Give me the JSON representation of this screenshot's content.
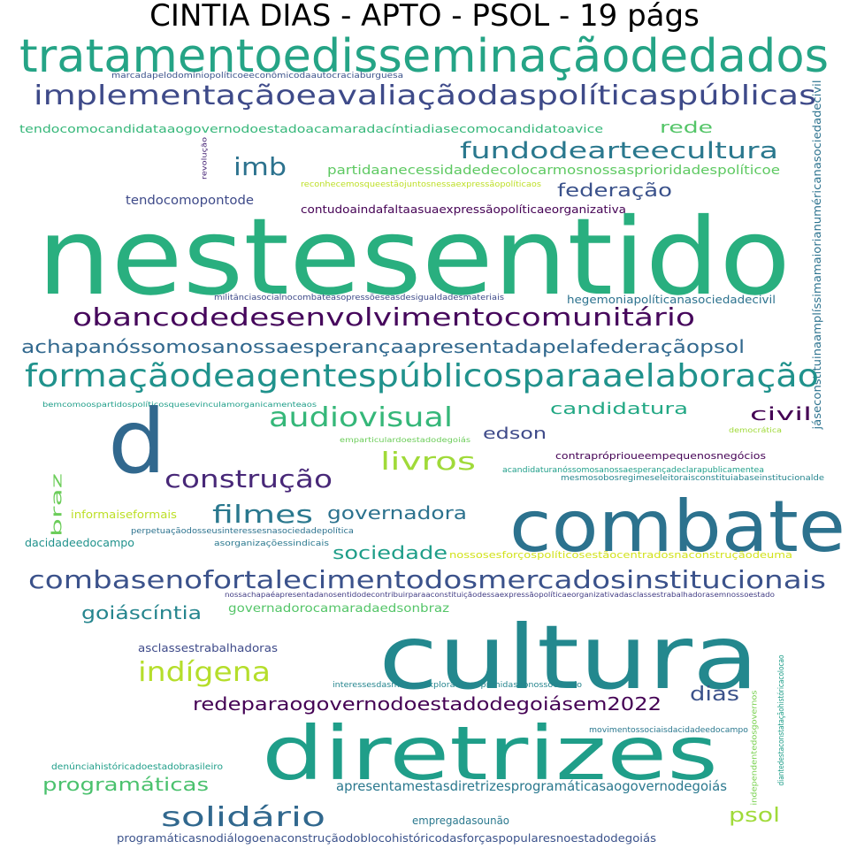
{
  "title": "CINTIA DIAS - APTO - PSOL - 19 págs",
  "words": [
    {
      "text": "tratamentoedisseminaçãodedados",
      "color": "#25a486"
    },
    {
      "text": "marcadapelodomíniopolíticoeeconômicodaautocraciaburguesa",
      "color": "#3b528b"
    },
    {
      "text": "implementaçãoeavaliaçãodaspolíticaspúblicas",
      "color": "#3e4a89"
    },
    {
      "text": "jáseconstituinaamplíssimamaiorianuméricanasociedadecivil",
      "color": "#2c728e"
    },
    {
      "text": "rede",
      "color": "#54c568"
    },
    {
      "text": "tendocomocandidataaogovernodoestadoacamaradacíntiadiasecomocandidatoavice",
      "color": "#35b779"
    },
    {
      "text": "revolução",
      "color": "#482677"
    },
    {
      "text": "fundodearteecultura",
      "color": "#2a788e"
    },
    {
      "text": "imb",
      "color": "#2c728e"
    },
    {
      "text": "partidaanecessidadedecolocarmosnossasprioridadespolíticoe",
      "color": "#5ec962"
    },
    {
      "text": "reconhecemosqueestãojuntosnessaexpressãopolíticaos",
      "color": "#bddf26"
    },
    {
      "text": "federação",
      "color": "#3b528b"
    },
    {
      "text": "tendocomopontode",
      "color": "#3e4a89"
    },
    {
      "text": "contudoaindafaltaasuaexpressãopolíticaeorganizativa",
      "color": "#440154"
    },
    {
      "text": "nestesentido",
      "color": "#29af7f"
    },
    {
      "text": "militânciasocialnocombateasopressõeseasdesigualdadesmateriais",
      "color": "#3e4a89"
    },
    {
      "text": "hegemoniapolíticanasociedadecivil",
      "color": "#2c728e"
    },
    {
      "text": "obancodedesenvolvimentocomunitário",
      "color": "#46085c"
    },
    {
      "text": "achapanóssomosanossaesperançaapresentadapelafederaçãopsol",
      "color": "#31688e"
    },
    {
      "text": "formaçãodeagentespúblicosparaaelaboração",
      "color": "#20928c"
    },
    {
      "text": "bemcomoospartidospolíticosquesevinculamorganicamenteaos",
      "color": "#1f9e89"
    },
    {
      "text": "audiovisual",
      "color": "#35b779"
    },
    {
      "text": "candidatura",
      "color": "#22a884"
    },
    {
      "text": "civil",
      "color": "#440154"
    },
    {
      "text": "edson",
      "color": "#3e4a89"
    },
    {
      "text": "democrática",
      "color": "#a0da39"
    },
    {
      "text": "emparticulardoestadodegoiás",
      "color": "#6ccd5a"
    },
    {
      "text": "d",
      "color": "#31688e"
    },
    {
      "text": "contrapróprioueempequenosnegócios",
      "color": "#440154"
    },
    {
      "text": "livros",
      "color": "#a0da39"
    },
    {
      "text": "acandidaturanóssomosanossaesperançadeclarapublicamentea",
      "color": "#1f9e89"
    },
    {
      "text": "mesmosobosregimeseleitoraisconstituiabaseinstitucionalde",
      "color": "#25858e"
    },
    {
      "text": "construção",
      "color": "#482878"
    },
    {
      "text": "braz",
      "color": "#6ccd5a"
    },
    {
      "text": "combate",
      "color": "#2c728e"
    },
    {
      "text": "informaiseformais",
      "color": "#bddf26"
    },
    {
      "text": "filmes",
      "color": "#2a788e"
    },
    {
      "text": "governadora",
      "color": "#2c728e"
    },
    {
      "text": "perpetuaçãodosseusinteressesnasociedadepolítica",
      "color": "#2c728e"
    },
    {
      "text": "dacidadeedocampo",
      "color": "#20928c"
    },
    {
      "text": "asorganizaçõessindicais",
      "color": "#2a788e"
    },
    {
      "text": "sociedade",
      "color": "#1f9e89"
    },
    {
      "text": "nossosesforçospolíticosestãocentradosnaconstruçãodeuma",
      "color": "#d2e21b"
    },
    {
      "text": "combasenofortalecimentodosmercadosinstitucionais",
      "color": "#3b528b"
    },
    {
      "text": "nossachapaéapresentadanosentidodecontribuirparaaconstituiçãodessaexpressãopolíticaeorganizativadasclassestrabalhadorasemnossoestado",
      "color": "#433e85"
    },
    {
      "text": "goiáscíntia",
      "color": "#25858e"
    },
    {
      "text": "governadorocamaradaedsonbraz",
      "color": "#54c568"
    },
    {
      "text": "cultura",
      "color": "#23888e"
    },
    {
      "text": "asclassestrabalhadoras",
      "color": "#3e4a89"
    },
    {
      "text": "indígena",
      "color": "#b5de2b"
    },
    {
      "text": "diantedestaconstataçãohistóricacolocao",
      "color": "#1f9e89"
    },
    {
      "text": "independentedosgovernos",
      "color": "#7ad151"
    },
    {
      "text": "interessesdasmassasexploradaseoprimidasdonossoestado",
      "color": "#25858e"
    },
    {
      "text": "redeparaogovernodoestadodegoiásem2022",
      "color": "#440154"
    },
    {
      "text": "dias",
      "color": "#3b528b"
    },
    {
      "text": "diretrizes",
      "color": "#1f9e89"
    },
    {
      "text": "movimentossociaisdacidadeedocampo",
      "color": "#2a788e"
    },
    {
      "text": "denúnciahistóricadoestadobrasileiro",
      "color": "#1f9e89"
    },
    {
      "text": "programáticas",
      "color": "#4ac16d"
    },
    {
      "text": "apresentamestasdiretrizesprogramáticasaogovernodegoiás",
      "color": "#2a788e"
    },
    {
      "text": "solidário",
      "color": "#31688e"
    },
    {
      "text": "psol",
      "color": "#a0da39"
    },
    {
      "text": "empregadasounão",
      "color": "#2a788e"
    },
    {
      "text": "programáticasnodiálogoenaconstruçãodoblocohistóricodasforçaspopularesnoestadodegoiás",
      "color": "#3b528b"
    }
  ]
}
